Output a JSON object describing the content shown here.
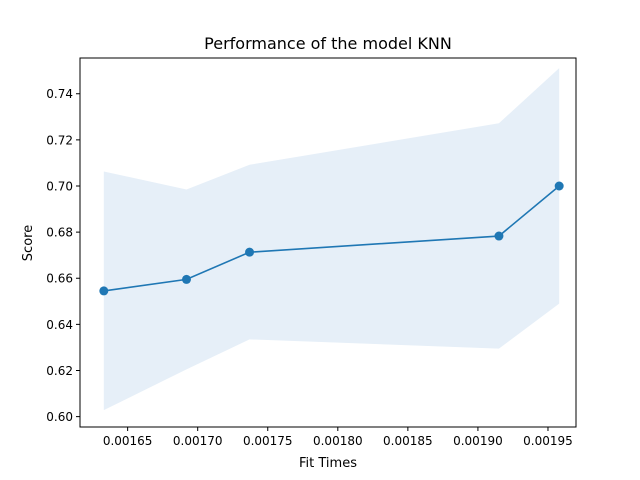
{
  "chart_data": {
    "type": "line",
    "title": "Performance of the model KNN",
    "xlabel": "Fit Times",
    "ylabel": "Score",
    "xlim": [
      0.001616,
      0.00197
    ],
    "ylim": [
      0.5955,
      0.7555
    ],
    "xticks": [
      0.00165,
      0.0017,
      0.00175,
      0.0018,
      0.00185,
      0.0019,
      0.00195
    ],
    "xtick_labels": [
      "0.00165",
      "0.00170",
      "0.00175",
      "0.00180",
      "0.00185",
      "0.00190",
      "0.00195"
    ],
    "yticks": [
      0.6,
      0.62,
      0.64,
      0.66,
      0.68,
      0.7,
      0.72,
      0.74
    ],
    "ytick_labels": [
      "0.60",
      "0.62",
      "0.64",
      "0.66",
      "0.68",
      "0.70",
      "0.72",
      "0.74"
    ],
    "grid": false,
    "legend": "none",
    "series": [
      {
        "x": [
          0.001633,
          0.001692,
          0.001737,
          0.001915,
          0.001958
        ],
        "values": [
          0.6545,
          0.6595,
          0.6713,
          0.6783,
          0.7
        ],
        "upper": [
          0.7063,
          0.6985,
          0.7092,
          0.7272,
          0.7511
        ],
        "lower": [
          0.6028,
          0.6205,
          0.6335,
          0.6295,
          0.649
        ],
        "color": "#1f77b4",
        "band_color": "#e6eff8"
      }
    ]
  }
}
